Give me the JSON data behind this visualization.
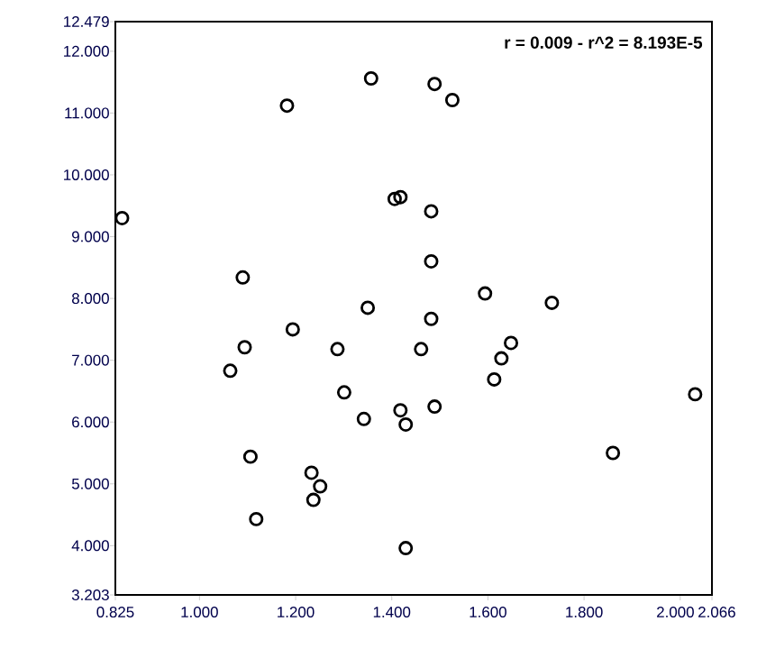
{
  "chart_data": {
    "type": "scatter",
    "marker": "circle",
    "color": "#000000",
    "x": [
      0.839,
      1.182,
      1.357,
      1.09,
      1.35,
      1.194,
      1.094,
      1.287,
      1.064,
      1.301,
      1.342,
      1.106,
      1.233,
      1.251,
      1.237,
      1.118,
      1.489,
      1.526,
      1.406,
      1.418,
      1.482,
      1.482,
      1.594,
      1.733,
      1.482,
      1.461,
      1.648,
      1.628,
      1.613,
      2.031,
      1.418,
      1.489,
      1.429,
      1.86,
      1.429
    ],
    "values": [
      9.3,
      11.12,
      11.56,
      8.34,
      7.85,
      7.5,
      7.21,
      7.18,
      6.83,
      6.48,
      6.05,
      5.44,
      5.18,
      4.96,
      4.74,
      4.43,
      11.47,
      11.21,
      9.61,
      9.64,
      9.41,
      8.6,
      8.08,
      7.93,
      7.67,
      7.18,
      7.28,
      7.03,
      6.69,
      6.45,
      6.19,
      6.25,
      5.96,
      5.5,
      3.96
    ],
    "xlim": [
      0.825,
      2.066
    ],
    "ylim": [
      3.203,
      12.479
    ],
    "xticks": [
      {
        "value": 0.825,
        "label": "0.825"
      },
      {
        "value": 1,
        "label": "1.000"
      },
      {
        "value": 1.2,
        "label": "1.200"
      },
      {
        "value": 1.4,
        "label": "1.400"
      },
      {
        "value": 1.6,
        "label": "1.600"
      },
      {
        "value": 1.8,
        "label": "1.800"
      },
      {
        "value": 2,
        "label": "2.000"
      },
      {
        "value": 2.066,
        "label": "2.066"
      }
    ],
    "yticks": [
      {
        "value": 3.203,
        "label": "3.203"
      },
      {
        "value": 4,
        "label": "4.000"
      },
      {
        "value": 5,
        "label": "5.000"
      },
      {
        "value": 6,
        "label": "6.000"
      },
      {
        "value": 7,
        "label": "7.000"
      },
      {
        "value": 8,
        "label": "8.000"
      },
      {
        "value": 9,
        "label": "9.000"
      },
      {
        "value": 10,
        "label": "10.000"
      },
      {
        "value": 11,
        "label": "11.000"
      },
      {
        "value": 12,
        "label": "12.000"
      },
      {
        "value": 12.479,
        "label": "12.479"
      }
    ],
    "grid": false,
    "annotations": [
      "r = 0.009 - r^2 = 8.193E-5"
    ]
  }
}
